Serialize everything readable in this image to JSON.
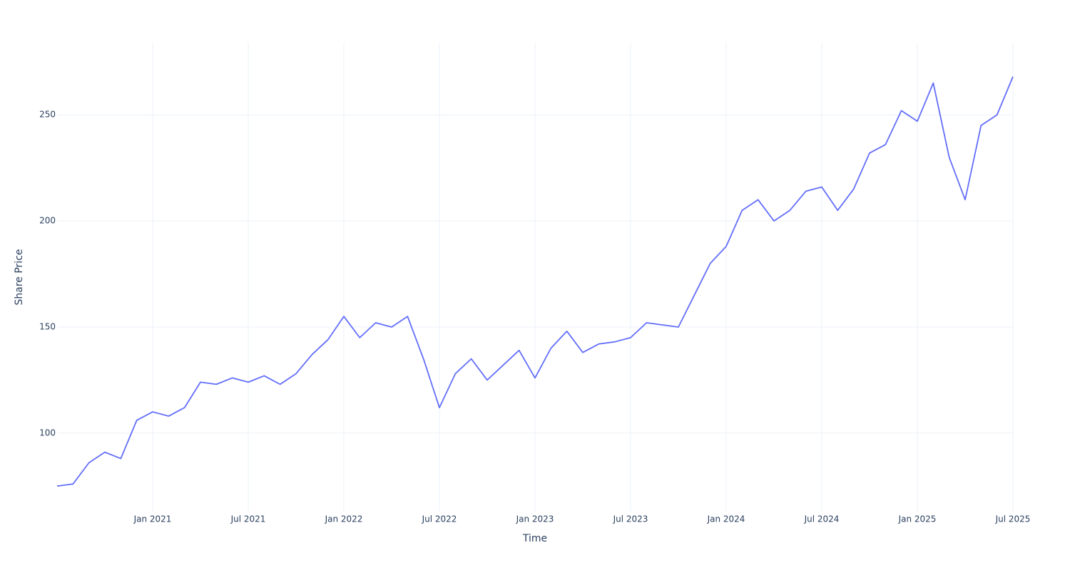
{
  "chart_data": {
    "type": "line",
    "x_label": "Time",
    "y_label": "Share Price",
    "x": [
      "2020-07",
      "2020-08",
      "2020-09",
      "2020-10",
      "2020-11",
      "2020-12",
      "2021-01",
      "2021-02",
      "2021-03",
      "2021-04",
      "2021-05",
      "2021-06",
      "2021-07",
      "2021-08",
      "2021-09",
      "2021-10",
      "2021-11",
      "2021-12",
      "2022-01",
      "2022-02",
      "2022-03",
      "2022-04",
      "2022-05",
      "2022-06",
      "2022-07",
      "2022-08",
      "2022-09",
      "2022-10",
      "2022-11",
      "2022-12",
      "2023-01",
      "2023-02",
      "2023-03",
      "2023-04",
      "2023-05",
      "2023-06",
      "2023-07",
      "2023-08",
      "2023-09",
      "2023-10",
      "2023-11",
      "2023-12",
      "2024-01",
      "2024-02",
      "2024-03",
      "2024-04",
      "2024-05",
      "2024-06",
      "2024-07",
      "2024-08",
      "2024-09",
      "2024-10",
      "2024-11",
      "2024-12",
      "2025-01",
      "2025-02",
      "2025-03",
      "2025-04",
      "2025-05",
      "2025-06",
      "2025-07"
    ],
    "series": [
      {
        "name": "Share Price",
        "color": "#636efa",
        "values": [
          75,
          76,
          86,
          91,
          88,
          106,
          110,
          108,
          112,
          124,
          123,
          126,
          124,
          127,
          123,
          128,
          137,
          144,
          155,
          145,
          152,
          150,
          155,
          135,
          112,
          128,
          135,
          125,
          132,
          139,
          126,
          140,
          148,
          138,
          142,
          143,
          145,
          152,
          151,
          150,
          165,
          180,
          188,
          205,
          210,
          200,
          205,
          214,
          216,
          205,
          215,
          232,
          236,
          252,
          247,
          265,
          230,
          210,
          245,
          250,
          268
        ]
      }
    ],
    "xlim": [
      "2020-07",
      "2025-07"
    ],
    "xticks": [
      {
        "value": "2021-01",
        "label": "Jan 2021"
      },
      {
        "value": "2021-07",
        "label": "Jul 2021"
      },
      {
        "value": "2022-01",
        "label": "Jan 2022"
      },
      {
        "value": "2022-07",
        "label": "Jul 2022"
      },
      {
        "value": "2023-01",
        "label": "Jan 2023"
      },
      {
        "value": "2023-07",
        "label": "Jul 2023"
      },
      {
        "value": "2024-01",
        "label": "Jan 2024"
      },
      {
        "value": "2024-07",
        "label": "Jul 2024"
      },
      {
        "value": "2025-01",
        "label": "Jan 2025"
      },
      {
        "value": "2025-07",
        "label": "Jul 2025"
      }
    ],
    "ylim": [
      63,
      284
    ],
    "yticks": [
      100,
      150,
      200,
      250
    ],
    "grid": true
  }
}
